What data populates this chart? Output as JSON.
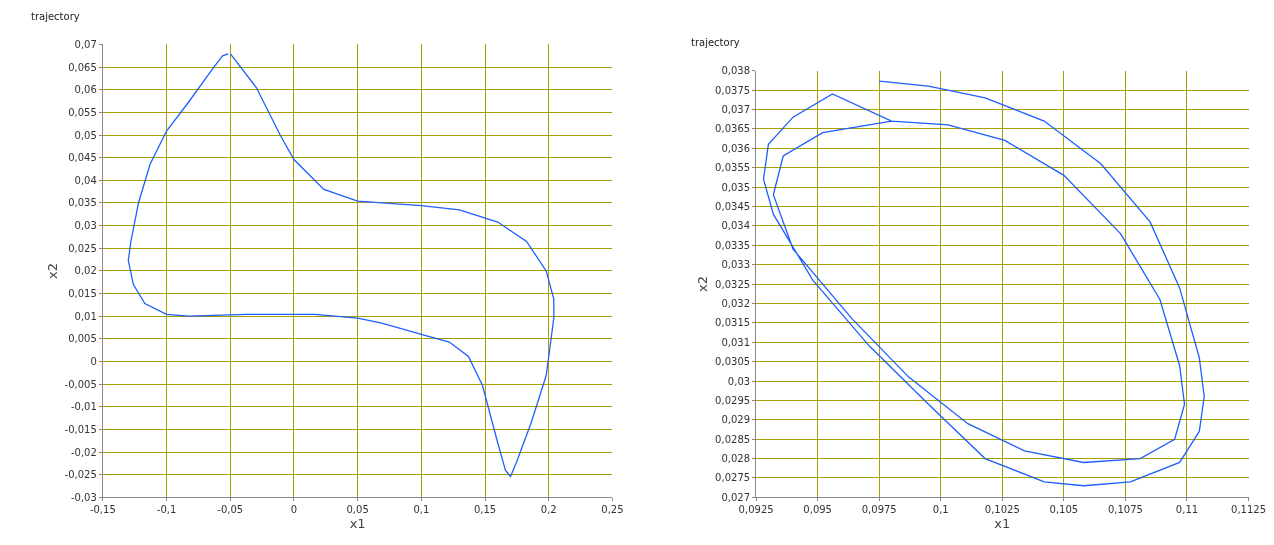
{
  "chart_data": [
    {
      "type": "line",
      "title": "trajectory",
      "xlabel": "x1",
      "ylabel": "x2",
      "grid": true,
      "marker": "none",
      "line_style": "solid",
      "xlim": [
        -0.15,
        0.25
      ],
      "ylim": [
        -0.03,
        0.07
      ],
      "xticks": [
        {
          "value": -0.15,
          "label": "-0,15"
        },
        {
          "value": -0.1,
          "label": "-0,1"
        },
        {
          "value": -0.05,
          "label": "-0,05"
        },
        0,
        {
          "value": 0.05,
          "label": "0,05"
        },
        {
          "value": 0.1,
          "label": "0,1"
        },
        {
          "value": 0.15,
          "label": "0,15"
        },
        {
          "value": 0.2,
          "label": "0,2"
        },
        {
          "value": 0.25,
          "label": "0,25"
        }
      ],
      "yticks": [
        {
          "value": -0.03,
          "label": "-0,03"
        },
        {
          "value": -0.025,
          "label": "-0,025"
        },
        {
          "value": -0.02,
          "label": "-0,02"
        },
        {
          "value": -0.015,
          "label": "-0,015"
        },
        {
          "value": -0.01,
          "label": "-0,01"
        },
        {
          "value": -0.005,
          "label": "-0,005"
        },
        0,
        {
          "value": 0.005,
          "label": "0,005"
        },
        {
          "value": 0.01,
          "label": "0,01"
        },
        {
          "value": 0.015,
          "label": "0,015"
        },
        {
          "value": 0.02,
          "label": "0,02"
        },
        {
          "value": 0.025,
          "label": "0,025"
        },
        {
          "value": 0.03,
          "label": "0,03"
        },
        {
          "value": 0.035,
          "label": "0,035"
        },
        {
          "value": 0.04,
          "label": "0,04"
        },
        {
          "value": 0.045,
          "label": "0,045"
        },
        {
          "value": 0.05,
          "label": "0,05"
        },
        {
          "value": 0.055,
          "label": "0,055"
        },
        {
          "value": 0.06,
          "label": "0,06"
        },
        {
          "value": 0.065,
          "label": "0,065"
        },
        {
          "value": 0.07,
          "label": "0,07"
        }
      ],
      "series": [
        {
          "color": "#1f5fff",
          "values": [
            0.068,
            0.0605,
            0.0499,
            0.0446,
            0.038,
            0.0354,
            0.0344,
            0.0335,
            0.0308,
            0.0265,
            0.02,
            0.0138,
            0.0096,
            -0.0031,
            -0.0137,
            -0.022,
            -0.0254,
            -0.024,
            -0.018,
            -0.0053,
            0.0011,
            0.0043,
            0.006,
            0.0085,
            0.0096,
            0.0104,
            0.0104,
            0.0104,
            0.01,
            0.0104,
            0.0128,
            0.017,
            0.0223,
            0.0265,
            0.035,
            0.0435,
            0.0509,
            0.0573,
            0.0647,
            0.0675,
            0.0679
          ]
        }
      ],
      "x": [
        -0.05,
        -0.0295,
        -0.0106,
        0,
        0.0235,
        0.05,
        0.1,
        0.13,
        0.16,
        0.1826,
        0.198,
        0.204,
        0.204,
        0.198,
        0.186,
        0.175,
        0.17,
        0.166,
        0.16,
        0.148,
        0.137,
        0.122,
        0.1,
        0.069,
        0.05,
        0.016,
        0,
        -0.037,
        -0.0826,
        -0.1,
        -0.117,
        -0.126,
        -0.13,
        -0.128,
        -0.122,
        -0.113,
        -0.1,
        -0.0826,
        -0.0636,
        -0.056,
        -0.0515
      ]
    },
    {
      "type": "line",
      "title": "trajectory",
      "xlabel": "x1",
      "ylabel": "x2",
      "grid": true,
      "marker": "none",
      "line_style": "solid",
      "xlim": [
        0.0925,
        0.1125
      ],
      "ylim": [
        0.027,
        0.038
      ],
      "xticks": [
        {
          "value": 0.0925,
          "label": "0,0925"
        },
        {
          "value": 0.095,
          "label": "0,095"
        },
        {
          "value": 0.0975,
          "label": "0,0975"
        },
        {
          "value": 0.1,
          "label": "0,1"
        },
        {
          "value": 0.1025,
          "label": "0,1025"
        },
        {
          "value": 0.105,
          "label": "0,105"
        },
        {
          "value": 0.1075,
          "label": "0,1075"
        },
        {
          "value": 0.11,
          "label": "0,11"
        },
        {
          "value": 0.1125,
          "label": "0,1125"
        }
      ],
      "yticks": [
        {
          "value": 0.027,
          "label": "0,027"
        },
        {
          "value": 0.0275,
          "label": "0,0275"
        },
        {
          "value": 0.028,
          "label": "0,028"
        },
        {
          "value": 0.0285,
          "label": "0,0285"
        },
        {
          "value": 0.029,
          "label": "0,029"
        },
        {
          "value": 0.0295,
          "label": "0,0295"
        },
        {
          "value": 0.03,
          "label": "0,03"
        },
        {
          "value": 0.0305,
          "label": "0,0305"
        },
        {
          "value": 0.031,
          "label": "0,031"
        },
        {
          "value": 0.0315,
          "label": "0,0315"
        },
        {
          "value": 0.032,
          "label": "0,032"
        },
        {
          "value": 0.0325,
          "label": "0,0325"
        },
        {
          "value": 0.033,
          "label": "0,033"
        },
        {
          "value": 0.0335,
          "label": "0,0335"
        },
        {
          "value": 0.034,
          "label": "0,034"
        },
        {
          "value": 0.0345,
          "label": "0,0345"
        },
        {
          "value": 0.035,
          "label": "0,035"
        },
        {
          "value": 0.0355,
          "label": "0,0355"
        },
        {
          "value": 0.036,
          "label": "0,036"
        },
        {
          "value": 0.0365,
          "label": "0,0365"
        },
        {
          "value": 0.037,
          "label": "0,037"
        },
        {
          "value": 0.0375,
          "label": "0,0375"
        },
        {
          "value": 0.038,
          "label": "0,038"
        }
      ],
      "series": [
        {
          "color": "#1f5fff",
          "values": [
            0.03773,
            0.0376,
            0.0373,
            0.0367,
            0.0356,
            0.0341,
            0.0324,
            0.0306,
            0.0296,
            0.0287,
            0.0279,
            0.0274,
            0.0273,
            0.0274,
            0.028,
            0.0294,
            0.0309,
            0.0326,
            0.0343,
            0.0352,
            0.0361,
            0.0368,
            0.0374,
            0.0367,
            0.0366,
            0.0362,
            0.0353,
            0.0338,
            0.0321,
            0.0304,
            0.0294,
            0.0285,
            0.028,
            0.0279,
            0.0282,
            0.0289,
            0.0301,
            0.0316,
            0.0334,
            0.0348,
            0.0358,
            0.0364,
            0.0367
          ]
        }
      ],
      "x": [
        0.0975,
        0.0995,
        0.1018,
        0.1042,
        0.1065,
        0.1085,
        0.1097,
        0.1105,
        0.1107,
        0.1105,
        0.1097,
        0.1077,
        0.1058,
        0.1042,
        0.1018,
        0.0995,
        0.0971,
        0.0948,
        0.0932,
        0.0928,
        0.093,
        0.094,
        0.0956,
        0.098,
        0.1003,
        0.1026,
        0.105,
        0.1073,
        0.1089,
        0.1097,
        0.1099,
        0.1095,
        0.1081,
        0.1058,
        0.1034,
        0.1011,
        0.0987,
        0.0964,
        0.094,
        0.0932,
        0.0936,
        0.0952,
        0.098
      ]
    }
  ]
}
